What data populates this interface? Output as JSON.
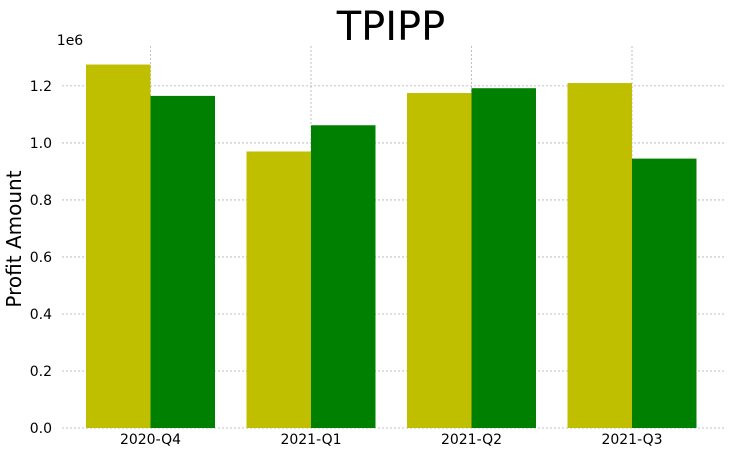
{
  "chart_data": {
    "type": "bar",
    "title": "TPIPP",
    "xlabel": "",
    "ylabel": "Profit Amount",
    "scale_label": "1e6",
    "categories": [
      "2020-Q4",
      "2021-Q1",
      "2021-Q2",
      "2021-Q3"
    ],
    "series": [
      {
        "color": "#bfbf00",
        "values": [
          1275000,
          970000,
          1175000,
          1210000
        ]
      },
      {
        "color": "#008000",
        "values": [
          1165000,
          1062000,
          1192000,
          945000
        ]
      }
    ],
    "ylim": [
      0,
      1340000
    ],
    "yticks": [
      0,
      200000,
      400000,
      600000,
      800000,
      1000000,
      1200000
    ],
    "ytick_labels": [
      "0.0",
      "0.2",
      "0.4",
      "0.6",
      "0.8",
      "1.0",
      "1.2"
    ],
    "grid": true,
    "legend": "none"
  }
}
